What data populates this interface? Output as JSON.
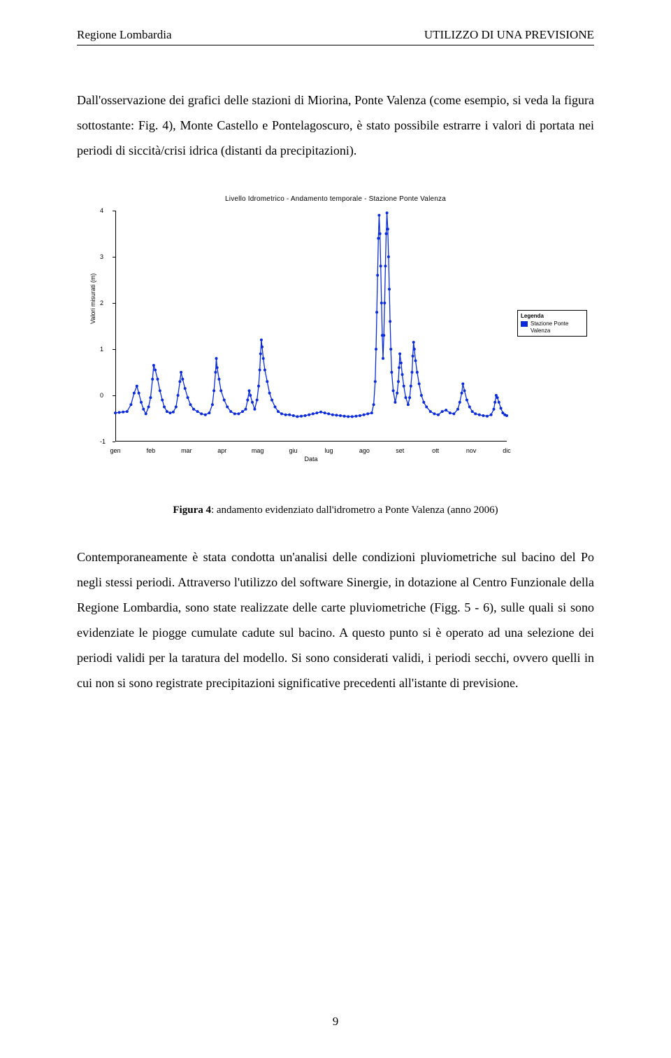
{
  "header": {
    "left": "Regione Lombardia",
    "right": "UTILIZZO DI UNA PREVISIONE"
  },
  "para1": "Dall'osservazione dei grafici delle stazioni di Miorina, Ponte Valenza (come esempio, si veda la figura sottostante: Fig. 4), Monte Castello e Pontelagoscuro, è stato possibile estrarre i valori di portata nei periodi di siccità/crisi idrica (distanti da precipitazioni).",
  "figure": {
    "chart_title": "Livello Idrometrico - Andamento temporale - Stazione Ponte Valenza",
    "ylabel": "Valori misurati (m)",
    "xlabel": "Data",
    "ylim": [
      -1,
      4
    ],
    "yticks": [
      -1,
      0,
      1,
      2,
      3,
      4
    ],
    "xticks": [
      "gen",
      "feb",
      "mar",
      "apr",
      "mag",
      "giu",
      "lug",
      "ago",
      "set",
      "ott",
      "nov",
      "dic"
    ],
    "legend": {
      "title": "Legenda",
      "label": "Stazione Ponte Valenza",
      "swatch_color": "#0b2bd8"
    },
    "series_color": "#0b2bd8",
    "marker_size": 2.0,
    "line_width": 1.3,
    "background_color": "#ffffff",
    "axis_color": "#000000",
    "series_type": "line-with-markers",
    "series": [
      {
        "x": 0.0,
        "y": -0.38
      },
      {
        "x": 0.01,
        "y": -0.37
      },
      {
        "x": 0.02,
        "y": -0.36
      },
      {
        "x": 0.03,
        "y": -0.35
      },
      {
        "x": 0.04,
        "y": -0.2
      },
      {
        "x": 0.048,
        "y": 0.05
      },
      {
        "x": 0.055,
        "y": 0.2
      },
      {
        "x": 0.06,
        "y": 0.05
      },
      {
        "x": 0.066,
        "y": -0.15
      },
      {
        "x": 0.072,
        "y": -0.3
      },
      {
        "x": 0.078,
        "y": -0.4
      },
      {
        "x": 0.085,
        "y": -0.25
      },
      {
        "x": 0.09,
        "y": -0.05
      },
      {
        "x": 0.095,
        "y": 0.35
      },
      {
        "x": 0.098,
        "y": 0.65
      },
      {
        "x": 0.102,
        "y": 0.55
      },
      {
        "x": 0.108,
        "y": 0.35
      },
      {
        "x": 0.114,
        "y": 0.1
      },
      {
        "x": 0.12,
        "y": -0.1
      },
      {
        "x": 0.125,
        "y": -0.25
      },
      {
        "x": 0.132,
        "y": -0.35
      },
      {
        "x": 0.14,
        "y": -0.38
      },
      {
        "x": 0.148,
        "y": -0.36
      },
      {
        "x": 0.155,
        "y": -0.25
      },
      {
        "x": 0.16,
        "y": 0.0
      },
      {
        "x": 0.165,
        "y": 0.3
      },
      {
        "x": 0.168,
        "y": 0.5
      },
      {
        "x": 0.172,
        "y": 0.35
      },
      {
        "x": 0.178,
        "y": 0.15
      },
      {
        "x": 0.185,
        "y": -0.05
      },
      {
        "x": 0.192,
        "y": -0.2
      },
      {
        "x": 0.2,
        "y": -0.3
      },
      {
        "x": 0.21,
        "y": -0.35
      },
      {
        "x": 0.22,
        "y": -0.4
      },
      {
        "x": 0.23,
        "y": -0.42
      },
      {
        "x": 0.24,
        "y": -0.38
      },
      {
        "x": 0.248,
        "y": -0.2
      },
      {
        "x": 0.252,
        "y": 0.1
      },
      {
        "x": 0.256,
        "y": 0.5
      },
      {
        "x": 0.258,
        "y": 0.8
      },
      {
        "x": 0.26,
        "y": 0.6
      },
      {
        "x": 0.265,
        "y": 0.35
      },
      {
        "x": 0.27,
        "y": 0.1
      },
      {
        "x": 0.278,
        "y": -0.1
      },
      {
        "x": 0.286,
        "y": -0.25
      },
      {
        "x": 0.295,
        "y": -0.35
      },
      {
        "x": 0.305,
        "y": -0.4
      },
      {
        "x": 0.315,
        "y": -0.4
      },
      {
        "x": 0.325,
        "y": -0.35
      },
      {
        "x": 0.333,
        "y": -0.3
      },
      {
        "x": 0.338,
        "y": -0.1
      },
      {
        "x": 0.342,
        "y": 0.1
      },
      {
        "x": 0.345,
        "y": 0.0
      },
      {
        "x": 0.35,
        "y": -0.15
      },
      {
        "x": 0.356,
        "y": -0.3
      },
      {
        "x": 0.362,
        "y": -0.1
      },
      {
        "x": 0.366,
        "y": 0.2
      },
      {
        "x": 0.369,
        "y": 0.55
      },
      {
        "x": 0.371,
        "y": 0.9
      },
      {
        "x": 0.373,
        "y": 1.2
      },
      {
        "x": 0.375,
        "y": 1.05
      },
      {
        "x": 0.378,
        "y": 0.8
      },
      {
        "x": 0.382,
        "y": 0.55
      },
      {
        "x": 0.388,
        "y": 0.3
      },
      {
        "x": 0.394,
        "y": 0.05
      },
      {
        "x": 0.4,
        "y": -0.1
      },
      {
        "x": 0.408,
        "y": -0.25
      },
      {
        "x": 0.416,
        "y": -0.35
      },
      {
        "x": 0.425,
        "y": -0.4
      },
      {
        "x": 0.435,
        "y": -0.42
      },
      {
        "x": 0.445,
        "y": -0.42
      },
      {
        "x": 0.455,
        "y": -0.44
      },
      {
        "x": 0.465,
        "y": -0.46
      },
      {
        "x": 0.475,
        "y": -0.45
      },
      {
        "x": 0.485,
        "y": -0.44
      },
      {
        "x": 0.495,
        "y": -0.42
      },
      {
        "x": 0.505,
        "y": -0.4
      },
      {
        "x": 0.515,
        "y": -0.38
      },
      {
        "x": 0.525,
        "y": -0.36
      },
      {
        "x": 0.535,
        "y": -0.38
      },
      {
        "x": 0.545,
        "y": -0.4
      },
      {
        "x": 0.555,
        "y": -0.42
      },
      {
        "x": 0.565,
        "y": -0.43
      },
      {
        "x": 0.575,
        "y": -0.44
      },
      {
        "x": 0.585,
        "y": -0.45
      },
      {
        "x": 0.595,
        "y": -0.46
      },
      {
        "x": 0.605,
        "y": -0.46
      },
      {
        "x": 0.615,
        "y": -0.45
      },
      {
        "x": 0.625,
        "y": -0.44
      },
      {
        "x": 0.635,
        "y": -0.42
      },
      {
        "x": 0.645,
        "y": -0.4
      },
      {
        "x": 0.655,
        "y": -0.38
      },
      {
        "x": 0.66,
        "y": -0.2
      },
      {
        "x": 0.664,
        "y": 0.3
      },
      {
        "x": 0.666,
        "y": 1.0
      },
      {
        "x": 0.668,
        "y": 1.8
      },
      {
        "x": 0.67,
        "y": 2.6
      },
      {
        "x": 0.672,
        "y": 3.4
      },
      {
        "x": 0.674,
        "y": 3.9
      },
      {
        "x": 0.676,
        "y": 3.5
      },
      {
        "x": 0.678,
        "y": 2.8
      },
      {
        "x": 0.68,
        "y": 2.0
      },
      {
        "x": 0.682,
        "y": 1.3
      },
      {
        "x": 0.684,
        "y": 0.8
      },
      {
        "x": 0.686,
        "y": 1.3
      },
      {
        "x": 0.688,
        "y": 2.0
      },
      {
        "x": 0.69,
        "y": 2.8
      },
      {
        "x": 0.692,
        "y": 3.5
      },
      {
        "x": 0.694,
        "y": 3.95
      },
      {
        "x": 0.696,
        "y": 3.6
      },
      {
        "x": 0.698,
        "y": 3.0
      },
      {
        "x": 0.7,
        "y": 2.3
      },
      {
        "x": 0.702,
        "y": 1.6
      },
      {
        "x": 0.704,
        "y": 1.0
      },
      {
        "x": 0.706,
        "y": 0.5
      },
      {
        "x": 0.71,
        "y": 0.1
      },
      {
        "x": 0.715,
        "y": -0.15
      },
      {
        "x": 0.72,
        "y": 0.05
      },
      {
        "x": 0.723,
        "y": 0.3
      },
      {
        "x": 0.725,
        "y": 0.6
      },
      {
        "x": 0.727,
        "y": 0.9
      },
      {
        "x": 0.73,
        "y": 0.7
      },
      {
        "x": 0.733,
        "y": 0.45
      },
      {
        "x": 0.737,
        "y": 0.2
      },
      {
        "x": 0.742,
        "y": -0.05
      },
      {
        "x": 0.748,
        "y": -0.2
      },
      {
        "x": 0.752,
        "y": -0.05
      },
      {
        "x": 0.755,
        "y": 0.2
      },
      {
        "x": 0.758,
        "y": 0.5
      },
      {
        "x": 0.76,
        "y": 0.85
      },
      {
        "x": 0.762,
        "y": 1.15
      },
      {
        "x": 0.764,
        "y": 1.0
      },
      {
        "x": 0.767,
        "y": 0.75
      },
      {
        "x": 0.771,
        "y": 0.5
      },
      {
        "x": 0.776,
        "y": 0.25
      },
      {
        "x": 0.782,
        "y": 0.0
      },
      {
        "x": 0.788,
        "y": -0.15
      },
      {
        "x": 0.795,
        "y": -0.25
      },
      {
        "x": 0.805,
        "y": -0.35
      },
      {
        "x": 0.815,
        "y": -0.4
      },
      {
        "x": 0.825,
        "y": -0.42
      },
      {
        "x": 0.835,
        "y": -0.35
      },
      {
        "x": 0.845,
        "y": -0.32
      },
      {
        "x": 0.855,
        "y": -0.38
      },
      {
        "x": 0.865,
        "y": -0.4
      },
      {
        "x": 0.875,
        "y": -0.3
      },
      {
        "x": 0.88,
        "y": -0.15
      },
      {
        "x": 0.885,
        "y": 0.05
      },
      {
        "x": 0.888,
        "y": 0.25
      },
      {
        "x": 0.892,
        "y": 0.1
      },
      {
        "x": 0.898,
        "y": -0.1
      },
      {
        "x": 0.905,
        "y": -0.25
      },
      {
        "x": 0.912,
        "y": -0.35
      },
      {
        "x": 0.92,
        "y": -0.4
      },
      {
        "x": 0.93,
        "y": -0.42
      },
      {
        "x": 0.94,
        "y": -0.44
      },
      {
        "x": 0.95,
        "y": -0.45
      },
      {
        "x": 0.96,
        "y": -0.42
      },
      {
        "x": 0.967,
        "y": -0.3
      },
      {
        "x": 0.97,
        "y": -0.15
      },
      {
        "x": 0.973,
        "y": 0.0
      },
      {
        "x": 0.976,
        "y": -0.05
      },
      {
        "x": 0.98,
        "y": -0.15
      },
      {
        "x": 0.985,
        "y": -0.28
      },
      {
        "x": 0.99,
        "y": -0.38
      },
      {
        "x": 0.995,
        "y": -0.42
      },
      {
        "x": 1.0,
        "y": -0.44
      }
    ],
    "caption_label": "Figura 4",
    "caption_text": ": andamento evidenziato dall'idrometro a Ponte Valenza (anno 2006)"
  },
  "para2": "Contemporaneamente è stata condotta un'analisi delle condizioni pluviometriche sul bacino del Po negli stessi periodi. Attraverso l'utilizzo del software Sinergie, in dotazione al Centro Funzionale della Regione Lombardia, sono state realizzate delle carte pluviometriche (Figg. 5 - 6), sulle quali si sono evidenziate le piogge cumulate cadute sul bacino. A questo punto si è operato ad una selezione dei periodi validi per la taratura del modello. Si sono considerati validi, i periodi secchi, ovvero quelli in cui non si sono registrate precipitazioni significative precedenti all'istante di previsione.",
  "page_number": "9"
}
